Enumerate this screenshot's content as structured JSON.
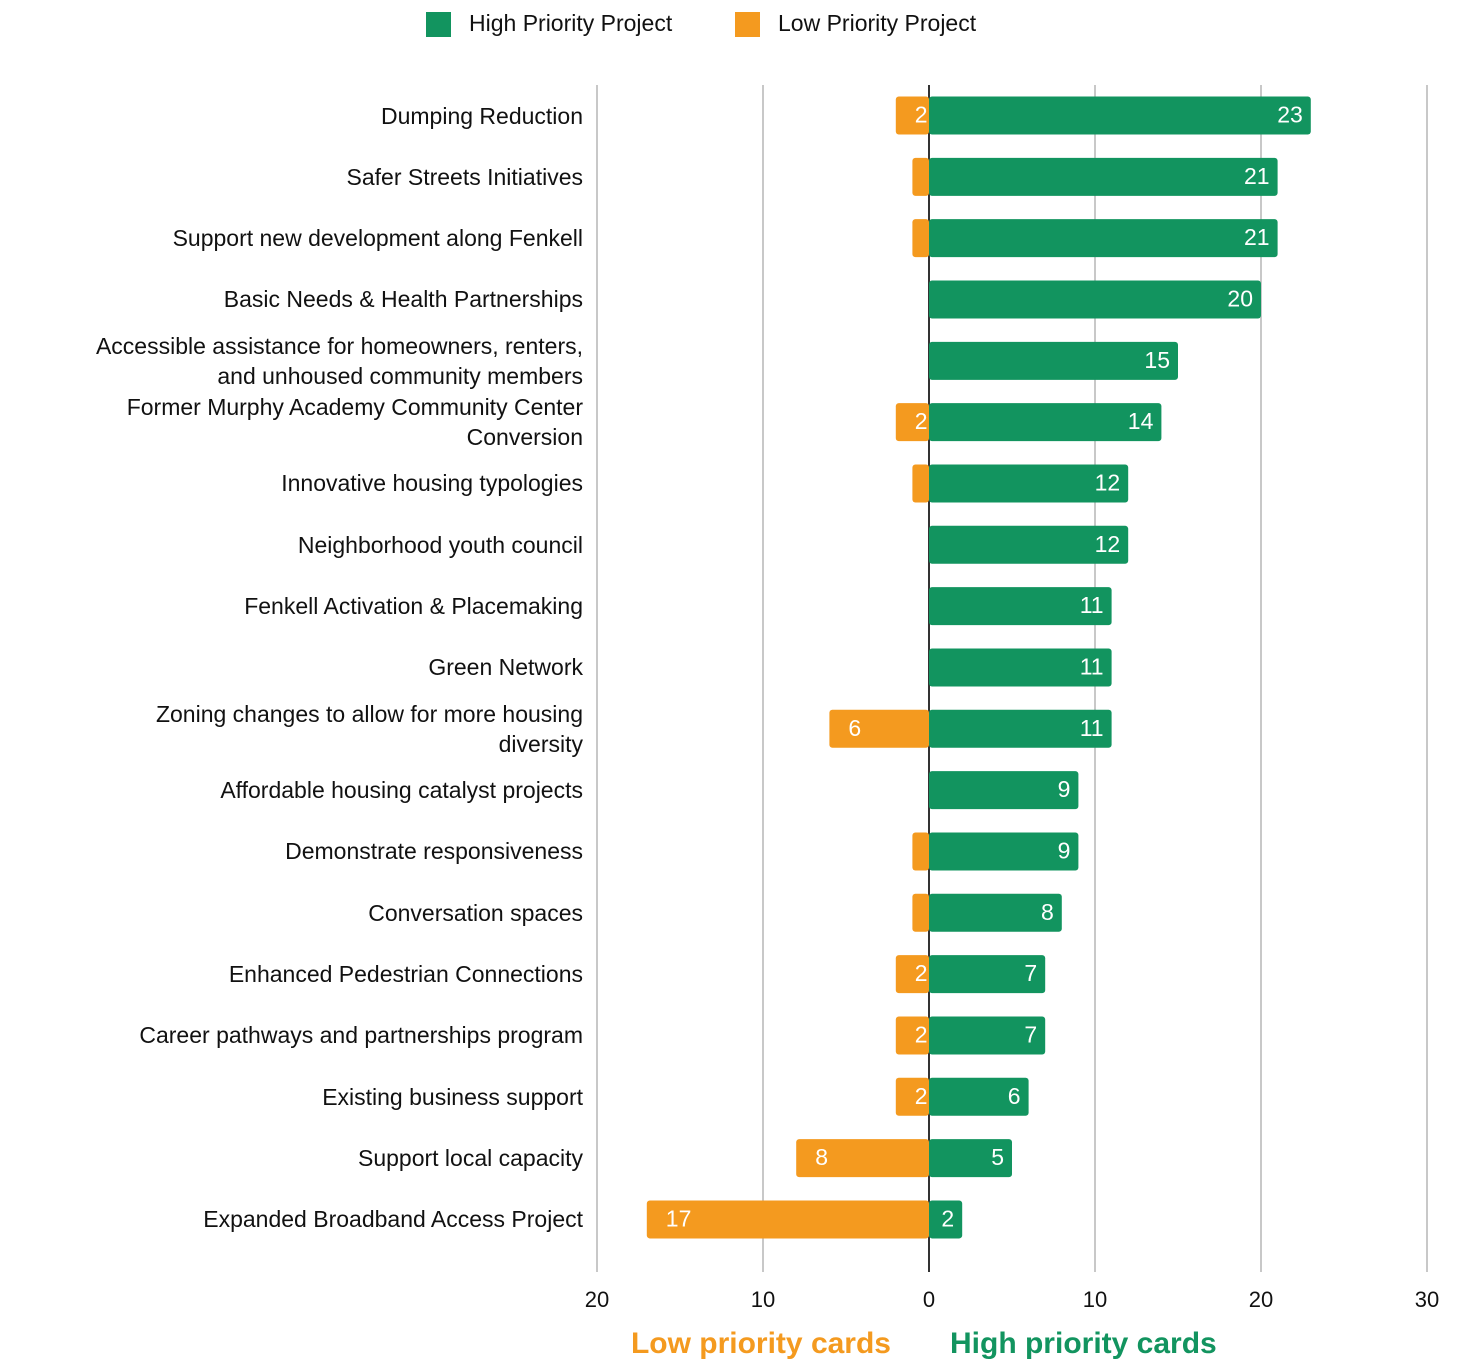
{
  "chart_data": {
    "type": "diverging_bar",
    "categories": [
      "Dumping Reduction",
      "Safer Streets Initiatives",
      "Support new development along Fenkell",
      "Basic Needs & Health Partnerships",
      "Accessible assistance for homeowners, renters,\nand unhoused community members",
      "Former Murphy Academy Community Center\nConversion",
      "Innovative housing typologies",
      "Neighborhood youth council",
      "Fenkell Activation & Placemaking",
      "Green Network",
      "Zoning changes to allow for more housing\ndiversity",
      "Affordable housing catalyst projects",
      "Demonstrate responsiveness",
      "Conversation spaces",
      "Enhanced Pedestrian Connections",
      "Career pathways and partnerships program",
      "Existing business support",
      "Support local capacity",
      "Expanded Broadband Access Project"
    ],
    "series": [
      {
        "name": "High Priority Project",
        "color": "#12945f",
        "values": [
          23,
          21,
          21,
          20,
          15,
          14,
          12,
          12,
          11,
          11,
          11,
          9,
          9,
          8,
          7,
          7,
          6,
          5,
          2
        ]
      },
      {
        "name": "Low Priority Project",
        "color": "#f49a1f",
        "values": [
          -2,
          -1,
          -1,
          0,
          0,
          -2,
          -1,
          0,
          0,
          0,
          -6,
          0,
          -1,
          -1,
          -2,
          -2,
          -2,
          -8,
          -17
        ],
        "value_labels": [
          "2",
          null,
          null,
          null,
          null,
          "2",
          null,
          null,
          null,
          null,
          "6",
          null,
          null,
          null,
          "2",
          "2",
          "2",
          "8",
          "17"
        ]
      }
    ],
    "xlim": [
      -20,
      30
    ],
    "xticks": [
      {
        "value": -20,
        "label": "20"
      },
      {
        "value": -10,
        "label": "10"
      },
      0,
      10,
      20,
      30
    ],
    "xlabels": [
      "Low priority cards",
      "High priority cards"
    ],
    "grid": true,
    "legend": "top"
  }
}
